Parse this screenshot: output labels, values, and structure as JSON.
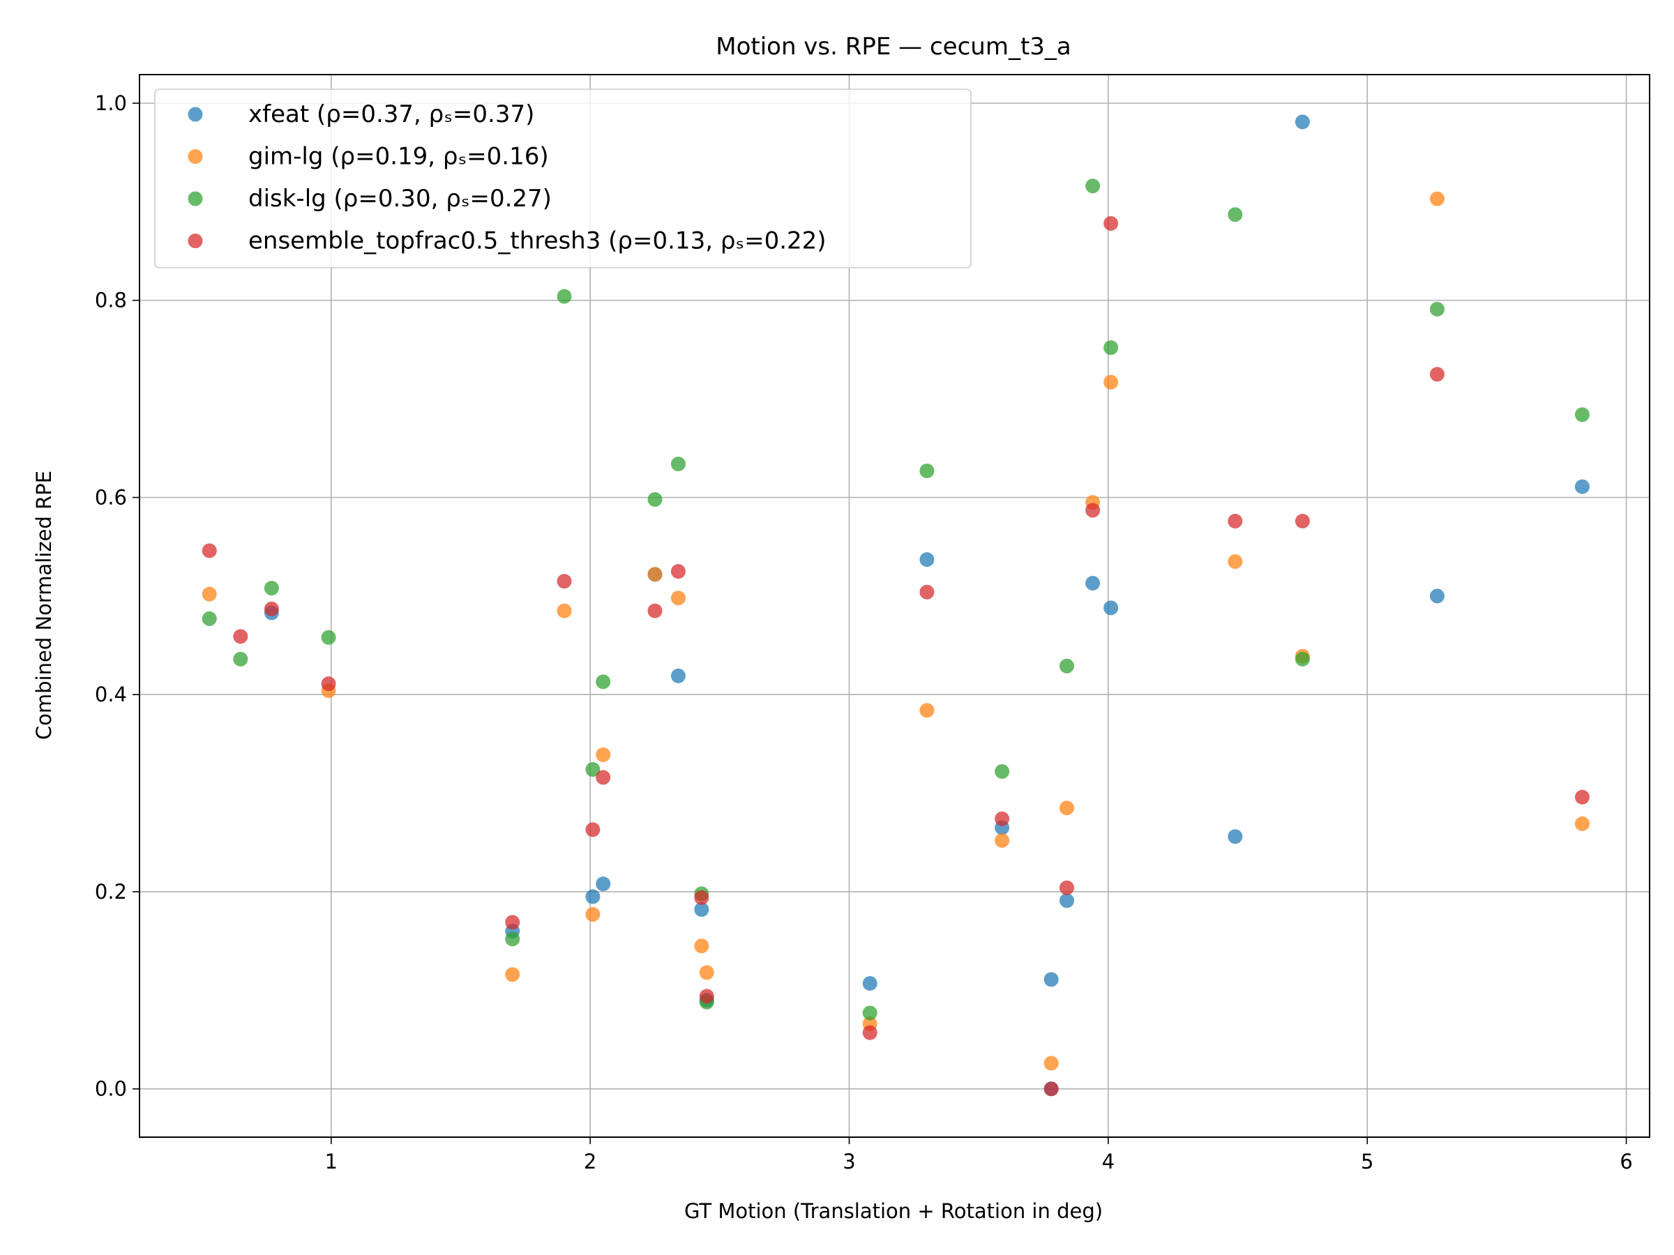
{
  "chart_data": {
    "type": "scatter",
    "title": "Motion vs. RPE — cecum_t3_a",
    "xlabel": "GT Motion (Translation + Rotation in deg)",
    "ylabel": "Combined Normalized RPE",
    "xlim": [
      0.26,
      6.09
    ],
    "ylim": [
      -0.049,
      1.029
    ],
    "xticks": [
      1,
      2,
      3,
      4,
      5,
      6
    ],
    "yticks": [
      0.0,
      0.2,
      0.4,
      0.6,
      0.8,
      1.0
    ],
    "xtick_labels": [
      "1",
      "2",
      "3",
      "4",
      "5",
      "6"
    ],
    "ytick_labels": [
      "0.0",
      "0.2",
      "0.4",
      "0.6",
      "0.8",
      "1.0"
    ],
    "grid": true,
    "legend_position": "top-left",
    "series": [
      {
        "name": "xfeat (ρ=0.37, ρₛ=0.37)",
        "color": "#1f77b4",
        "points": [
          [
            0.77,
            0.483
          ],
          [
            1.7,
            0.16
          ],
          [
            2.01,
            0.195
          ],
          [
            2.05,
            0.208
          ],
          [
            2.25,
            0.522
          ],
          [
            2.34,
            0.419
          ],
          [
            2.43,
            0.182
          ],
          [
            2.45,
            0.09
          ],
          [
            3.08,
            0.107
          ],
          [
            3.3,
            0.537
          ],
          [
            3.59,
            0.265
          ],
          [
            3.78,
            0.111
          ],
          [
            3.78,
            0.0
          ],
          [
            3.84,
            0.191
          ],
          [
            3.94,
            0.513
          ],
          [
            4.01,
            0.488
          ],
          [
            4.49,
            0.256
          ],
          [
            4.75,
            0.981
          ],
          [
            5.27,
            0.5
          ],
          [
            5.83,
            0.611
          ]
        ]
      },
      {
        "name": "gim-lg (ρ=0.19, ρₛ=0.16)",
        "color": "#ff7f0e",
        "points": [
          [
            0.53,
            0.502
          ],
          [
            0.99,
            0.404
          ],
          [
            1.7,
            0.116
          ],
          [
            1.9,
            0.485
          ],
          [
            2.01,
            0.177
          ],
          [
            2.05,
            0.339
          ],
          [
            2.25,
            0.522
          ],
          [
            2.34,
            0.498
          ],
          [
            2.43,
            0.145
          ],
          [
            2.45,
            0.118
          ],
          [
            3.08,
            0.066
          ],
          [
            3.3,
            0.384
          ],
          [
            3.59,
            0.252
          ],
          [
            3.78,
            0.026
          ],
          [
            3.84,
            0.285
          ],
          [
            3.94,
            0.595
          ],
          [
            4.01,
            0.717
          ],
          [
            4.49,
            0.535
          ],
          [
            4.75,
            0.439
          ],
          [
            5.27,
            0.903
          ],
          [
            5.83,
            0.269
          ]
        ]
      },
      {
        "name": "disk-lg (ρ=0.30, ρₛ=0.27)",
        "color": "#2ca02c",
        "points": [
          [
            0.53,
            0.477
          ],
          [
            0.65,
            0.436
          ],
          [
            0.77,
            0.508
          ],
          [
            0.99,
            0.458
          ],
          [
            1.7,
            0.152
          ],
          [
            1.9,
            0.804
          ],
          [
            2.01,
            0.324
          ],
          [
            2.05,
            0.413
          ],
          [
            2.25,
            0.598
          ],
          [
            2.34,
            0.634
          ],
          [
            2.43,
            0.198
          ],
          [
            2.45,
            0.088
          ],
          [
            3.08,
            0.077
          ],
          [
            3.3,
            0.627
          ],
          [
            3.59,
            0.322
          ],
          [
            3.84,
            0.429
          ],
          [
            3.94,
            0.916
          ],
          [
            4.01,
            0.752
          ],
          [
            4.49,
            0.887
          ],
          [
            4.75,
            0.436
          ],
          [
            5.27,
            0.791
          ],
          [
            5.83,
            0.684
          ]
        ]
      },
      {
        "name": "ensemble_topfrac0.5_thresh3 (ρ=0.13, ρₛ=0.22)",
        "color": "#d62728",
        "points": [
          [
            0.53,
            0.546
          ],
          [
            0.65,
            0.459
          ],
          [
            0.77,
            0.487
          ],
          [
            0.99,
            0.411
          ],
          [
            1.7,
            0.169
          ],
          [
            1.9,
            0.515
          ],
          [
            2.01,
            0.263
          ],
          [
            2.05,
            0.316
          ],
          [
            2.25,
            0.485
          ],
          [
            2.34,
            0.525
          ],
          [
            2.43,
            0.194
          ],
          [
            2.45,
            0.094
          ],
          [
            3.08,
            0.057
          ],
          [
            3.3,
            0.504
          ],
          [
            3.59,
            0.274
          ],
          [
            3.78,
            0.0
          ],
          [
            3.84,
            0.204
          ],
          [
            3.94,
            0.587
          ],
          [
            4.01,
            0.878
          ],
          [
            4.49,
            0.576
          ],
          [
            4.75,
            0.576
          ],
          [
            5.27,
            0.725
          ],
          [
            5.83,
            0.296
          ]
        ]
      }
    ]
  }
}
